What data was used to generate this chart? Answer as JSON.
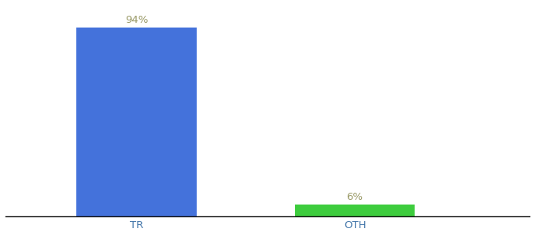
{
  "categories": [
    "TR",
    "OTH"
  ],
  "values": [
    94,
    6
  ],
  "bar_colors": [
    "#4472db",
    "#3dcc3d"
  ],
  "labels": [
    "94%",
    "6%"
  ],
  "background_color": "#ffffff",
  "label_color": "#999966",
  "label_fontsize": 9.5,
  "tick_fontsize": 9.5,
  "tick_color": "#4477aa",
  "ylim": [
    0,
    105
  ],
  "bar_width": 0.55,
  "x_positions": [
    1,
    2
  ],
  "xlim": [
    0.4,
    2.8
  ]
}
